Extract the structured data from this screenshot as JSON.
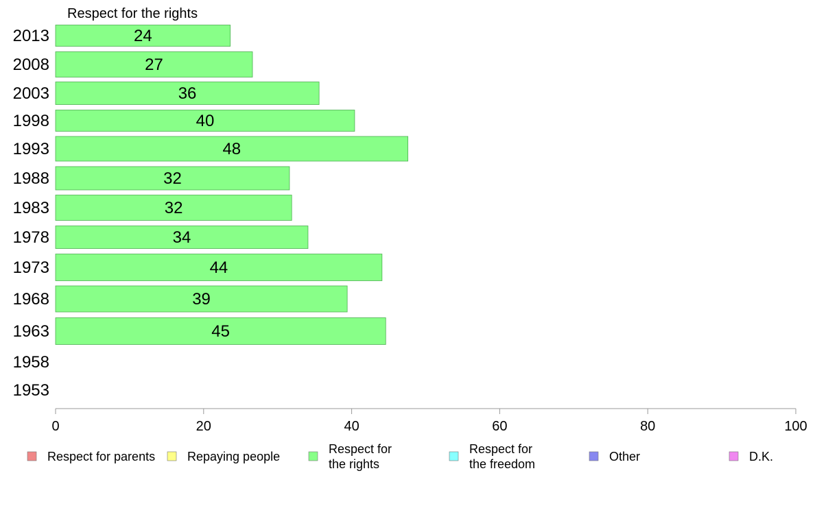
{
  "chart_data": {
    "type": "bar",
    "orientation": "horizontal",
    "title": "Respect for the rights",
    "categories": [
      "2013",
      "2008",
      "2003",
      "1998",
      "1993",
      "1988",
      "1983",
      "1978",
      "1973",
      "1968",
      "1963",
      "1958",
      "1953"
    ],
    "series": [
      {
        "name": "Respect for the rights",
        "color": "#88ff88",
        "values": [
          24,
          27,
          36,
          40,
          48,
          32,
          32,
          34,
          44,
          39,
          45,
          null,
          null
        ],
        "bar_values": [
          23.6,
          26.6,
          35.6,
          40.4,
          47.6,
          31.6,
          31.9,
          34.1,
          44.1,
          39.4,
          44.6,
          null,
          null
        ]
      }
    ],
    "xlim": [
      0,
      100
    ],
    "xticks": [
      0,
      20,
      40,
      60,
      80,
      100
    ],
    "xlabel": "",
    "ylabel": "",
    "grid": false,
    "legend_position": "bottom",
    "legend": [
      {
        "label": "Respect for parents",
        "color": "#f08888"
      },
      {
        "label": "Repaying people",
        "color": "#ffff88"
      },
      {
        "label": "Respect for\nthe rights",
        "color": "#88ff88"
      },
      {
        "label": "Respect for\nthe freedom",
        "color": "#88ffff"
      },
      {
        "label": "Other",
        "color": "#8888f0"
      },
      {
        "label": "D.K.",
        "color": "#f088f0"
      }
    ]
  }
}
